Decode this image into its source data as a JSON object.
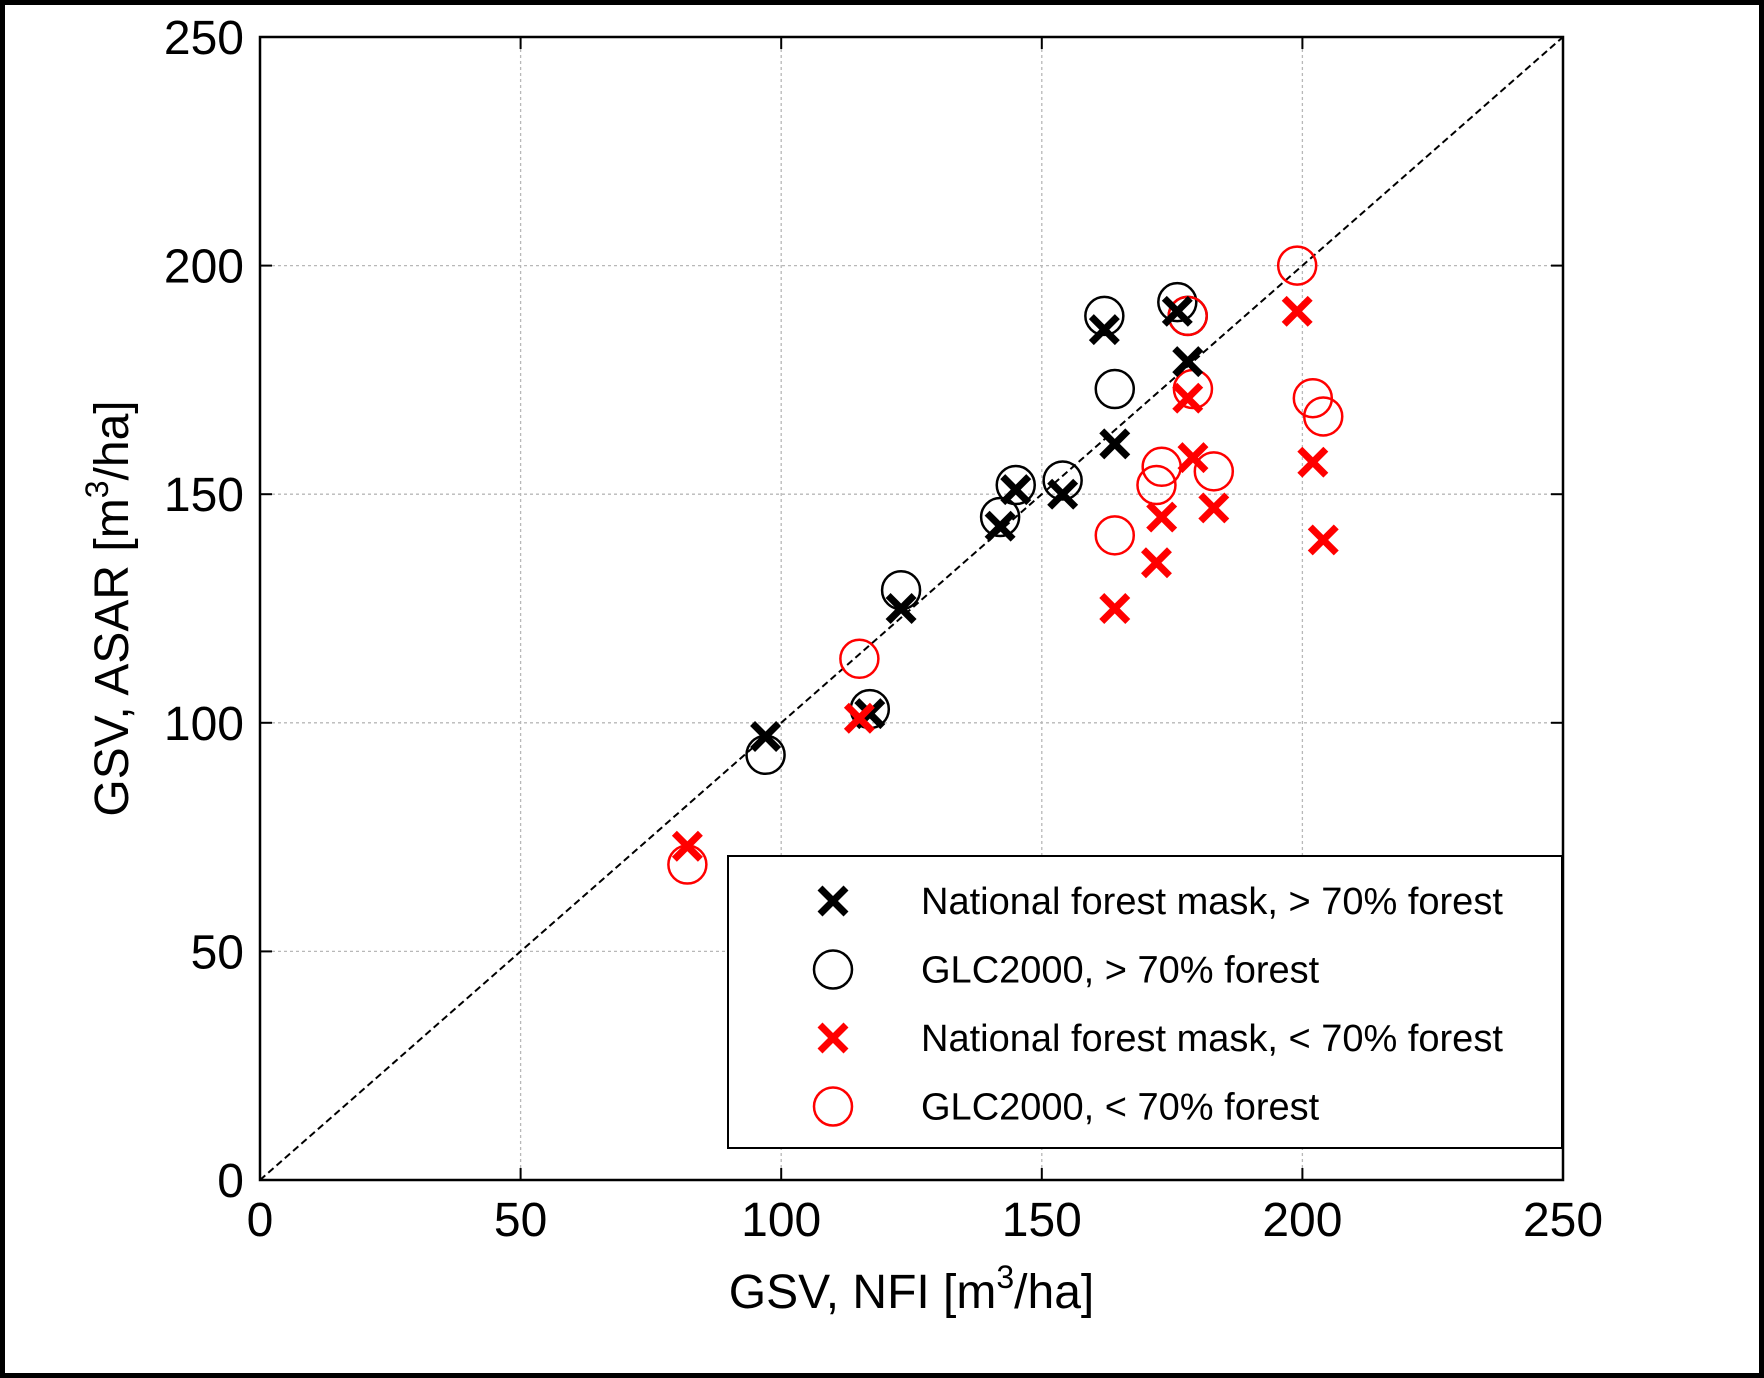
{
  "chart_data": {
    "type": "scatter",
    "xlabel": {
      "main": "GSV, NFI [m",
      "sup": "3",
      "tail": "/ha]"
    },
    "ylabel": {
      "main": "GSV, ASAR [m",
      "sup": "3",
      "tail": "/ha]"
    },
    "xlim": [
      0,
      250
    ],
    "ylim": [
      0,
      250
    ],
    "xticks": [
      0,
      50,
      100,
      150,
      200,
      250
    ],
    "yticks": [
      0,
      50,
      100,
      150,
      200,
      250
    ],
    "grid": true,
    "reference_line": "1:1",
    "legend_position": "bottom-right",
    "series": [
      {
        "name": "National forest mask, > 70% forest",
        "marker": "x",
        "color": "#000000",
        "points": [
          [
            97,
            97
          ],
          [
            117,
            102
          ],
          [
            123,
            125
          ],
          [
            142,
            143
          ],
          [
            145,
            151
          ],
          [
            154,
            150
          ],
          [
            162,
            186
          ],
          [
            164,
            161
          ],
          [
            176,
            190
          ],
          [
            178,
            179
          ]
        ]
      },
      {
        "name": "GLC2000, > 70% forest",
        "marker": "o",
        "color": "#000000",
        "points": [
          [
            97,
            93
          ],
          [
            117,
            103
          ],
          [
            123,
            129
          ],
          [
            142,
            145
          ],
          [
            145,
            152
          ],
          [
            154,
            153
          ],
          [
            162,
            189
          ],
          [
            164,
            173
          ],
          [
            176,
            192
          ],
          [
            178,
            189
          ]
        ]
      },
      {
        "name": "National forest mask, < 70% forest",
        "marker": "x",
        "color": "#ff0000",
        "points": [
          [
            82,
            73
          ],
          [
            115,
            101
          ],
          [
            164,
            125
          ],
          [
            172,
            135
          ],
          [
            173,
            145
          ],
          [
            178,
            171
          ],
          [
            179,
            158
          ],
          [
            183,
            147
          ],
          [
            199,
            190
          ],
          [
            202,
            157
          ],
          [
            204,
            140
          ]
        ]
      },
      {
        "name": "GLC2000, < 70% forest",
        "marker": "o",
        "color": "#ff0000",
        "points": [
          [
            82,
            69
          ],
          [
            115,
            114
          ],
          [
            164,
            141
          ],
          [
            172,
            152
          ],
          [
            173,
            156
          ],
          [
            178,
            189
          ],
          [
            179,
            173
          ],
          [
            183,
            155
          ],
          [
            199,
            200
          ],
          [
            202,
            171
          ],
          [
            204,
            167
          ]
        ]
      }
    ]
  }
}
